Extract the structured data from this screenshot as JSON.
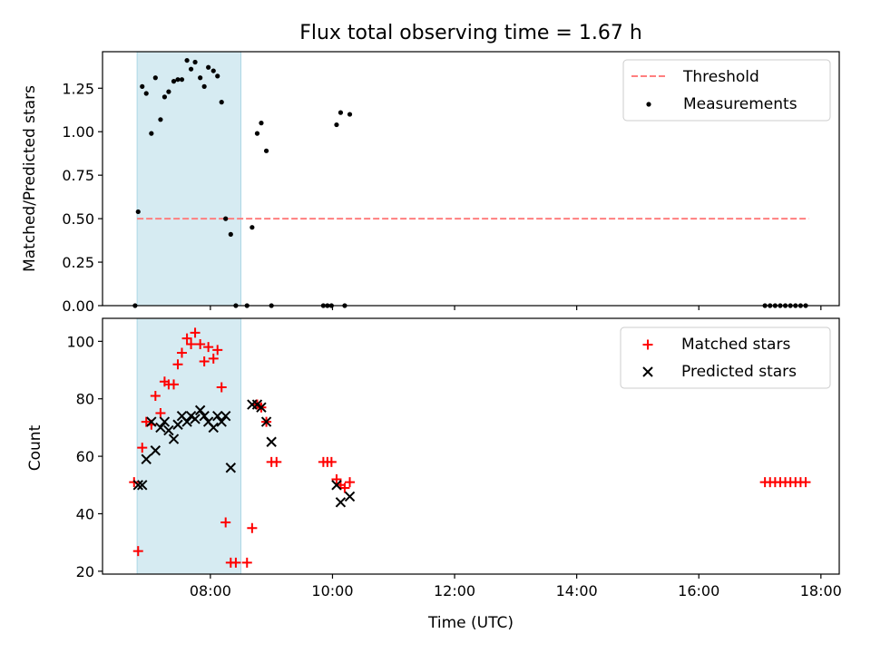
{
  "title": "Flux total observing time = 1.67 h",
  "xlabel": "Time (UTC)",
  "x_ticks": [
    "08:00",
    "10:00",
    "12:00",
    "14:00",
    "16:00",
    "18:00"
  ],
  "colors": {
    "threshold": "#ff7f7f",
    "measurement": "#000000",
    "matched": "#ff0000",
    "predicted": "#000000",
    "shade": "#add8e6"
  },
  "chart_data": [
    {
      "type": "scatter",
      "ylabel": "Matched/Predicted stars",
      "ylim": [
        0.0,
        1.46
      ],
      "xlim": [
        "06:14",
        "18:18"
      ],
      "y_ticks": [
        "0.00",
        "0.25",
        "0.50",
        "0.75",
        "1.00",
        "1.25"
      ],
      "shaded_span": [
        "06:48",
        "08:30"
      ],
      "legend": {
        "placement": "top-right",
        "entries": [
          "Threshold",
          "Measurements"
        ]
      },
      "threshold": {
        "name": "Threshold",
        "y": 0.5,
        "x": [
          "06:48",
          "17:48"
        ],
        "style": "dashed"
      },
      "series": [
        {
          "name": "Measurements",
          "points": [
            [
              "06:46",
              0.0
            ],
            [
              "06:49",
              0.54
            ],
            [
              "06:53",
              1.26
            ],
            [
              "06:57",
              1.22
            ],
            [
              "07:02",
              0.99
            ],
            [
              "07:06",
              1.31
            ],
            [
              "07:11",
              1.07
            ],
            [
              "07:15",
              1.2
            ],
            [
              "07:19",
              1.23
            ],
            [
              "07:24",
              1.29
            ],
            [
              "07:28",
              1.3
            ],
            [
              "07:32",
              1.3
            ],
            [
              "07:37",
              1.41
            ],
            [
              "07:41",
              1.36
            ],
            [
              "07:45",
              1.4
            ],
            [
              "07:50",
              1.31
            ],
            [
              "07:54",
              1.26
            ],
            [
              "07:58",
              1.37
            ],
            [
              "08:03",
              1.35
            ],
            [
              "08:07",
              1.32
            ],
            [
              "08:11",
              1.17
            ],
            [
              "08:15",
              0.5
            ],
            [
              "08:20",
              0.41
            ],
            [
              "08:25",
              0.0
            ],
            [
              "08:36",
              0.0
            ],
            [
              "08:41",
              0.45
            ],
            [
              "08:46",
              0.99
            ],
            [
              "08:50",
              1.05
            ],
            [
              "08:55",
              0.89
            ],
            [
              "09:00",
              0.0
            ],
            [
              "09:51",
              0.0
            ],
            [
              "09:55",
              0.0
            ],
            [
              "09:59",
              0.0
            ],
            [
              "10:04",
              1.04
            ],
            [
              "10:08",
              1.11
            ],
            [
              "10:12",
              0.0
            ],
            [
              "10:17",
              1.1
            ],
            [
              "17:05",
              0.0
            ],
            [
              "17:10",
              0.0
            ],
            [
              "17:15",
              0.0
            ],
            [
              "17:20",
              0.0
            ],
            [
              "17:25",
              0.0
            ],
            [
              "17:30",
              0.0
            ],
            [
              "17:35",
              0.0
            ],
            [
              "17:40",
              0.0
            ],
            [
              "17:45",
              0.0
            ]
          ]
        }
      ]
    },
    {
      "type": "scatter",
      "ylabel": "Count",
      "ylim": [
        19,
        108
      ],
      "xlim": [
        "06:14",
        "18:18"
      ],
      "y_ticks": [
        "20",
        "40",
        "60",
        "80",
        "100"
      ],
      "shaded_span": [
        "06:48",
        "08:30"
      ],
      "legend": {
        "placement": "top-right",
        "entries": [
          "Matched stars",
          "Predicted stars"
        ]
      },
      "series": [
        {
          "name": "Matched stars",
          "marker": "plus",
          "points": [
            [
              "06:45",
              51
            ],
            [
              "06:49",
              27
            ],
            [
              "06:53",
              63
            ],
            [
              "06:57",
              72
            ],
            [
              "07:02",
              71
            ],
            [
              "07:06",
              81
            ],
            [
              "07:11",
              75
            ],
            [
              "07:15",
              86
            ],
            [
              "07:19",
              85
            ],
            [
              "07:24",
              85
            ],
            [
              "07:28",
              92
            ],
            [
              "07:32",
              96
            ],
            [
              "07:37",
              101
            ],
            [
              "07:41",
              99
            ],
            [
              "07:45",
              103
            ],
            [
              "07:50",
              99
            ],
            [
              "07:54",
              93
            ],
            [
              "07:58",
              98
            ],
            [
              "08:03",
              94
            ],
            [
              "08:07",
              97
            ],
            [
              "08:11",
              84
            ],
            [
              "08:15",
              37
            ],
            [
              "08:20",
              23
            ],
            [
              "08:25",
              23
            ],
            [
              "08:36",
              23
            ],
            [
              "08:41",
              35
            ],
            [
              "08:46",
              78
            ],
            [
              "08:50",
              77
            ],
            [
              "08:55",
              72
            ],
            [
              "09:00",
              58
            ],
            [
              "09:05",
              58
            ],
            [
              "09:51",
              58
            ],
            [
              "09:55",
              58
            ],
            [
              "09:59",
              58
            ],
            [
              "10:04",
              52
            ],
            [
              "10:08",
              50
            ],
            [
              "10:12",
              49
            ],
            [
              "10:17",
              51
            ],
            [
              "17:05",
              51
            ],
            [
              "17:10",
              51
            ],
            [
              "17:15",
              51
            ],
            [
              "17:20",
              51
            ],
            [
              "17:25",
              51
            ],
            [
              "17:30",
              51
            ],
            [
              "17:35",
              51
            ],
            [
              "17:40",
              51
            ],
            [
              "17:45",
              51
            ]
          ]
        },
        {
          "name": "Predicted stars",
          "marker": "x",
          "points": [
            [
              "06:49",
              50
            ],
            [
              "06:53",
              50
            ],
            [
              "06:57",
              59
            ],
            [
              "07:02",
              72
            ],
            [
              "07:06",
              62
            ],
            [
              "07:11",
              70
            ],
            [
              "07:15",
              72
            ],
            [
              "07:19",
              69
            ],
            [
              "07:24",
              66
            ],
            [
              "07:28",
              71
            ],
            [
              "07:32",
              74
            ],
            [
              "07:37",
              72
            ],
            [
              "07:41",
              74
            ],
            [
              "07:45",
              73
            ],
            [
              "07:50",
              76
            ],
            [
              "07:54",
              74
            ],
            [
              "07:58",
              72
            ],
            [
              "08:03",
              70
            ],
            [
              "08:07",
              74
            ],
            [
              "08:11",
              72
            ],
            [
              "08:15",
              74
            ],
            [
              "08:20",
              56
            ],
            [
              "08:41",
              78
            ],
            [
              "08:46",
              78
            ],
            [
              "08:50",
              77
            ],
            [
              "08:55",
              72
            ],
            [
              "09:00",
              65
            ],
            [
              "10:04",
              50
            ],
            [
              "10:08",
              44
            ],
            [
              "10:17",
              46
            ]
          ]
        }
      ]
    }
  ]
}
